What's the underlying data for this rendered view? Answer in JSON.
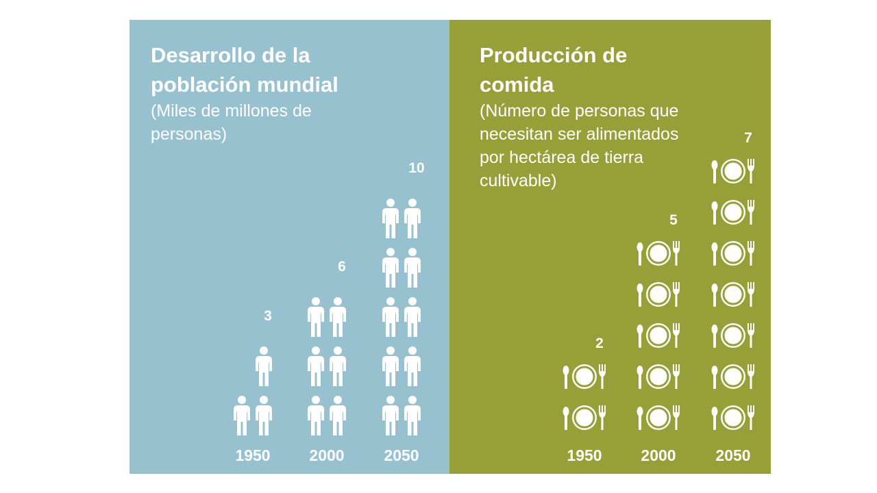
{
  "left": {
    "title": "Desarrollo de la\npoblación mundial",
    "subtitle": "(Miles de millones de\npersonas)"
  },
  "right": {
    "title": "Producción de\ncomida",
    "subtitle": "(Número de personas que\nnecesitan ser alimentados\npor hectárea de tierra\ncultivable)"
  },
  "colors": {
    "left_bg": "#98c1cf",
    "right_bg": "#979f38",
    "icon": "#ffffff"
  },
  "chart_data": [
    {
      "type": "bar",
      "title": "Desarrollo de la población mundial",
      "ylabel": "(Miles de millones de personas)",
      "categories": [
        "1950",
        "2000",
        "2050"
      ],
      "values": [
        3,
        6,
        10
      ],
      "icon": "person-icon",
      "icon_unit": 1
    },
    {
      "type": "bar",
      "title": "Producción de comida",
      "ylabel": "(Número de personas que necesitan ser alimentados por hectárea de tierra cultivable)",
      "categories": [
        "1950",
        "2000",
        "2050"
      ],
      "values": [
        2,
        5,
        7
      ],
      "icon": "plate-cutlery-icon",
      "icon_unit": 1
    }
  ]
}
